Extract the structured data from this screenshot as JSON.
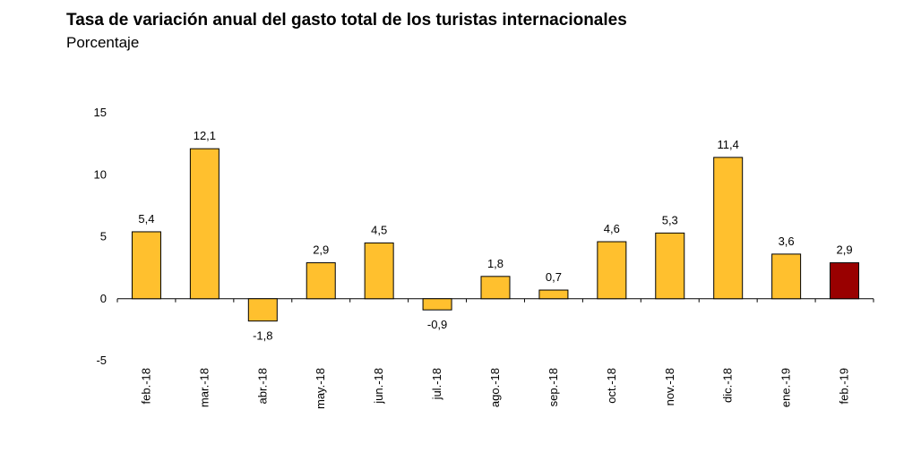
{
  "chart_data": {
    "type": "bar",
    "title": "Tasa de variación anual del gasto total de los turistas internacionales",
    "subtitle": "Porcentaje",
    "xlabel": "",
    "ylabel": "",
    "ylim": [
      -5,
      15
    ],
    "yticks": [
      15,
      10,
      5,
      0,
      -5
    ],
    "ytick_labels": [
      "15",
      "10",
      "5",
      "0",
      "-5"
    ],
    "grid": false,
    "categories": [
      "feb.-18",
      "mar.-18",
      "abr.-18",
      "may.-18",
      "jun.-18",
      "jul.-18",
      "ago.-18",
      "sep.-18",
      "oct.-18",
      "nov.-18",
      "dic.-18",
      "ene.-19",
      "feb.-19"
    ],
    "values": [
      5.4,
      12.1,
      -1.8,
      2.9,
      4.5,
      -0.9,
      1.8,
      0.7,
      4.6,
      5.3,
      11.4,
      3.6,
      2.9
    ],
    "value_labels": [
      "5,4",
      "12,1",
      "-1,8",
      "2,9",
      "4,5",
      "-0,9",
      "1,8",
      "0,7",
      "4,6",
      "5,3",
      "11,4",
      "3,6",
      "2,9"
    ],
    "colors": {
      "bar": "#FFC02E",
      "highlight": "#990000",
      "outline": "#000000"
    },
    "highlight_index": 12
  }
}
